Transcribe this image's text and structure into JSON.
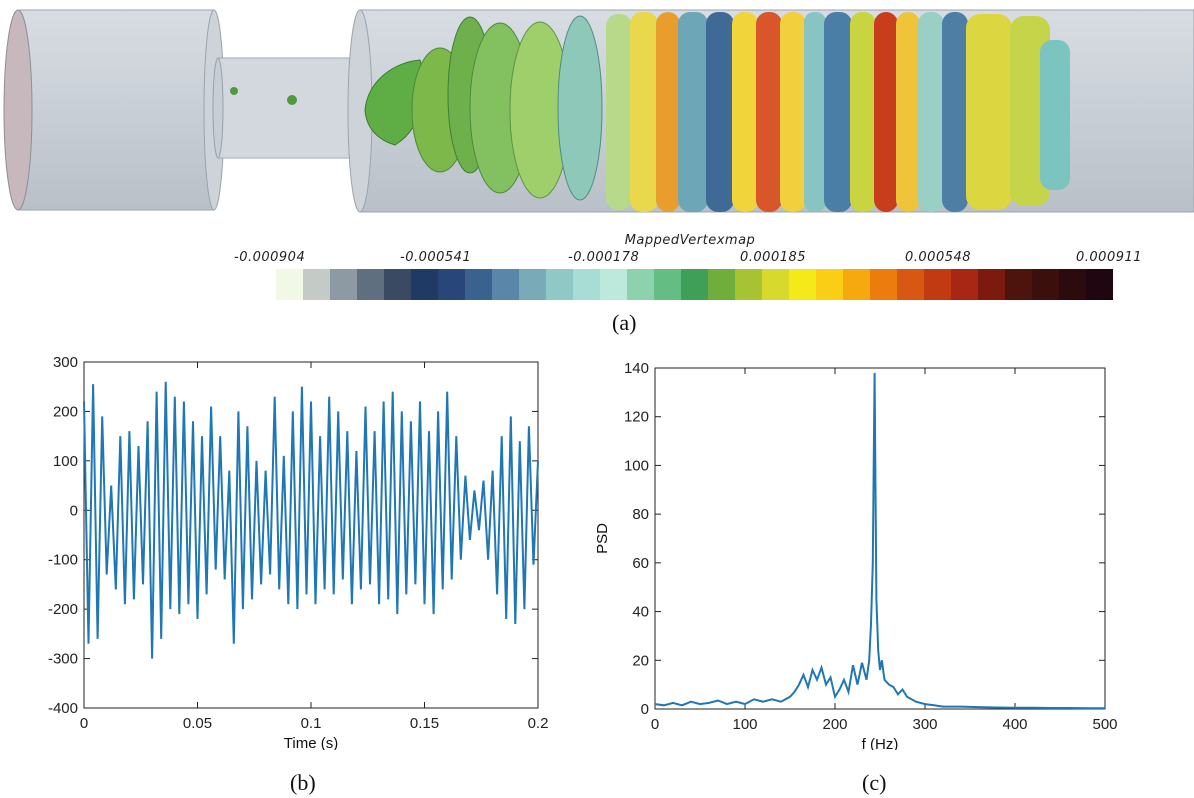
{
  "figure": {
    "panel_a": {
      "label": "(a)",
      "colorbar_title": "MappedVertexmap",
      "colorbar_ticks": [
        "-0.000904",
        "-0.000541",
        "-0.000178",
        "0.000185",
        "0.000548",
        "0.000911"
      ],
      "colorbar_colors": [
        "#f1f8e6",
        "#c4cbc6",
        "#8d9aa3",
        "#5f6f7f",
        "#3a4a63",
        "#1f3a64",
        "#28467a",
        "#39628f",
        "#5986a9",
        "#79aab8",
        "#8fc8c4",
        "#a7ddd4",
        "#bde9dc",
        "#8cd2ad",
        "#64bd82",
        "#3f9f57",
        "#6fae3a",
        "#a8c332",
        "#d7d92d",
        "#f4ea18",
        "#f9ce14",
        "#f6a90e",
        "#ec7d0c",
        "#d95811",
        "#c23a12",
        "#a82714",
        "#7c1a10",
        "#4d130d",
        "#3a0f0c",
        "#2b0b0e",
        "#200611"
      ]
    },
    "panel_b": {
      "label": "(b)"
    },
    "panel_c": {
      "label": "(c)"
    }
  },
  "chart_data": [
    {
      "type": "line",
      "xlabel": "Time (s)",
      "ylabel": "",
      "xlim": [
        0,
        0.2
      ],
      "ylim": [
        -400,
        300
      ],
      "xticks": [
        "0",
        "0.05",
        "0.1",
        "0.15",
        "0.2"
      ],
      "yticks": [
        "-400",
        "-300",
        "-200",
        "-100",
        "0",
        "100",
        "200",
        "300"
      ],
      "color": "#1f77b4",
      "grid": false,
      "series": [
        {
          "x": [
            0.0,
            0.002,
            0.004,
            0.006,
            0.008,
            0.01,
            0.012,
            0.014,
            0.016,
            0.018,
            0.02,
            0.022,
            0.024,
            0.026,
            0.028,
            0.03,
            0.032,
            0.034,
            0.036,
            0.038,
            0.04,
            0.042,
            0.044,
            0.046,
            0.048,
            0.05,
            0.052,
            0.054,
            0.056,
            0.058,
            0.06,
            0.062,
            0.064,
            0.066,
            0.068,
            0.07,
            0.072,
            0.074,
            0.076,
            0.078,
            0.08,
            0.082,
            0.084,
            0.086,
            0.088,
            0.09,
            0.092,
            0.094,
            0.096,
            0.098,
            0.1,
            0.102,
            0.104,
            0.106,
            0.108,
            0.11,
            0.112,
            0.114,
            0.116,
            0.118,
            0.12,
            0.122,
            0.124,
            0.126,
            0.128,
            0.13,
            0.132,
            0.134,
            0.136,
            0.138,
            0.14,
            0.142,
            0.144,
            0.146,
            0.148,
            0.15,
            0.152,
            0.154,
            0.156,
            0.158,
            0.16,
            0.162,
            0.164,
            0.166,
            0.168,
            0.17,
            0.172,
            0.174,
            0.176,
            0.178,
            0.18,
            0.182,
            0.184,
            0.186,
            0.188,
            0.19,
            0.192,
            0.194,
            0.196,
            0.198,
            0.2
          ],
          "y": [
            220,
            -270,
            255,
            -260,
            190,
            -130,
            50,
            -160,
            150,
            -190,
            160,
            -180,
            130,
            -150,
            180,
            -300,
            240,
            -260,
            260,
            -200,
            230,
            -210,
            220,
            -190,
            180,
            -220,
            150,
            -170,
            210,
            -120,
            150,
            -140,
            80,
            -270,
            200,
            -200,
            170,
            -180,
            100,
            -150,
            80,
            -130,
            230,
            -160,
            110,
            -190,
            200,
            -200,
            250,
            -170,
            220,
            -190,
            150,
            -160,
            230,
            -170,
            200,
            -140,
            160,
            -190,
            120,
            -160,
            210,
            -150,
            160,
            -190,
            220,
            -180,
            240,
            -210,
            200,
            -170,
            180,
            -150,
            220,
            -190,
            160,
            -210,
            200,
            -160,
            240,
            -140,
            150,
            -100,
            70,
            -60,
            40,
            -40,
            60,
            -100,
            80,
            -170,
            150,
            -220,
            190,
            -230,
            140,
            -200,
            170,
            -110,
            100
          ]
        }
      ]
    },
    {
      "type": "line",
      "xlabel": "f (Hz)",
      "ylabel": "PSD",
      "xlim": [
        0,
        500
      ],
      "ylim": [
        0,
        140
      ],
      "xticks": [
        "0",
        "100",
        "200",
        "300",
        "400",
        "500"
      ],
      "yticks": [
        "0",
        "20",
        "40",
        "60",
        "80",
        "100",
        "120",
        "140"
      ],
      "color": "#1f77b4",
      "grid": false,
      "series": [
        {
          "x": [
            0,
            10,
            20,
            30,
            40,
            50,
            60,
            70,
            80,
            90,
            100,
            110,
            120,
            130,
            140,
            150,
            155,
            160,
            165,
            170,
            175,
            180,
            185,
            190,
            195,
            200,
            205,
            210,
            215,
            220,
            225,
            230,
            235,
            238,
            240,
            242,
            243,
            244,
            245,
            246,
            248,
            250,
            252,
            255,
            260,
            265,
            270,
            275,
            280,
            290,
            300,
            310,
            320,
            340,
            360,
            380,
            400,
            420,
            440,
            460,
            480,
            500
          ],
          "y": [
            2,
            1.5,
            2.5,
            1.5,
            3,
            2,
            2.5,
            3.5,
            2,
            3,
            2,
            4,
            3,
            4,
            3,
            5,
            7,
            10,
            14,
            9,
            16,
            12,
            17,
            10,
            13,
            5,
            8,
            12,
            7,
            18,
            10,
            19,
            12,
            20,
            35,
            60,
            100,
            138,
            90,
            45,
            24,
            16,
            20,
            12,
            10,
            9,
            6,
            8,
            5,
            3,
            2,
            1.5,
            1,
            1,
            0.8,
            0.6,
            0.5,
            0.5,
            0.4,
            0.4,
            0.3,
            0.3
          ]
        }
      ]
    }
  ]
}
